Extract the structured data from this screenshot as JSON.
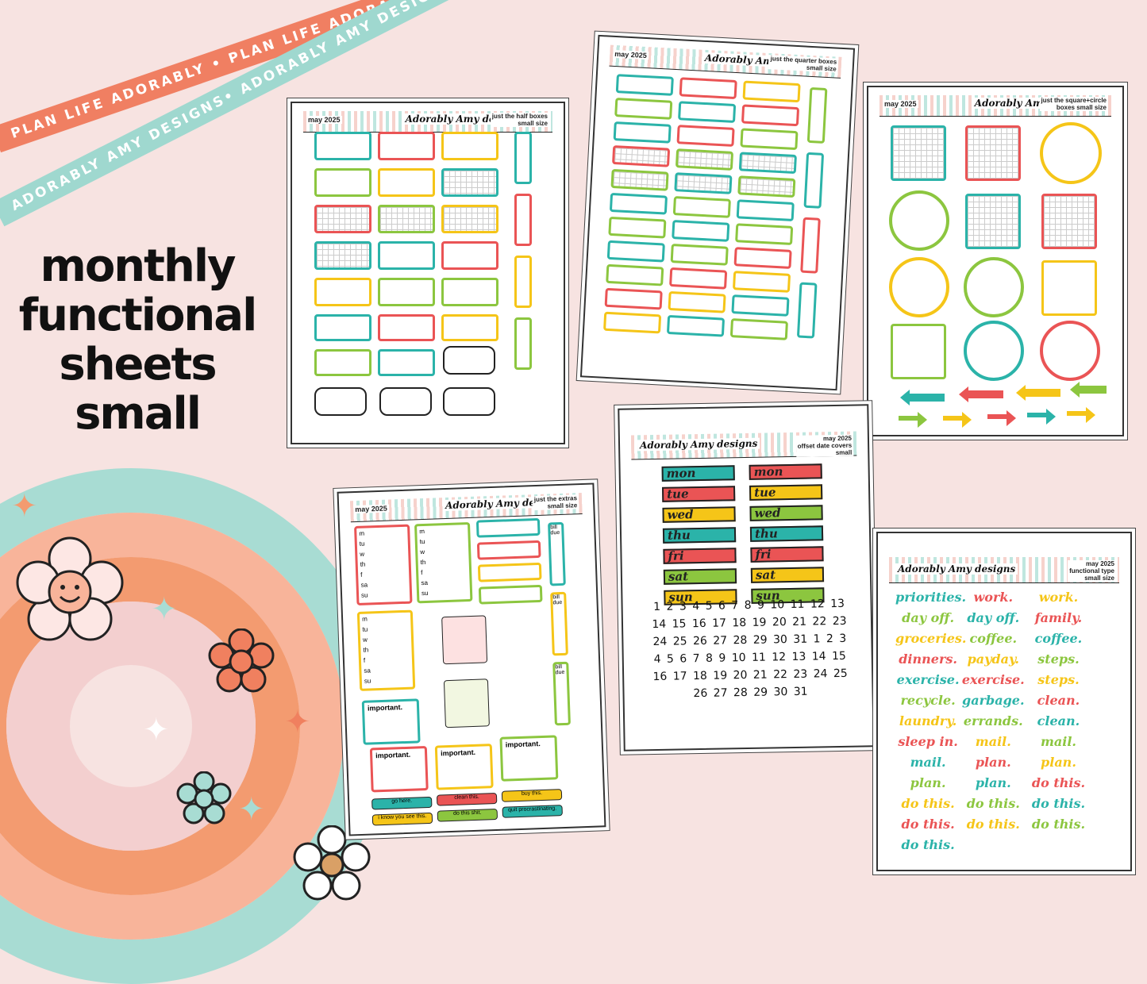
{
  "ribbons": {
    "top": "PLAN LIFE ADORABLY • PLAN LIFE ADORABLY •",
    "bottom": "ADORABLY AMY DESIGNS• ADORABLY AMY DESIGNS• ADORABLY AMY DESIGNS•"
  },
  "headline": {
    "line1": "monthly",
    "line2": "functional",
    "line3": "sheets",
    "line4": "small"
  },
  "brand": "Adorably Amy designs",
  "sheets": {
    "half_boxes": {
      "month": "may 2025",
      "desc1": "just the half boxes",
      "desc2": "small size"
    },
    "quarter_boxes": {
      "month": "may 2025",
      "desc1": "just the quarter boxes",
      "desc2": "small size"
    },
    "square_circle": {
      "month": "may 2025",
      "desc1": "just the square+circle",
      "desc2": "boxes small size"
    },
    "extras": {
      "month": "may 2025",
      "desc1": "just the extras",
      "desc2": "small size",
      "important": "important.",
      "tracker_days": [
        "m",
        "tu",
        "w",
        "th",
        "f",
        "sa",
        "su"
      ],
      "bill_due": "bill due",
      "labels": [
        "go here.",
        "clean this.",
        "buy this.",
        "i know you see this.",
        "do this shit.",
        "quit procrastinating."
      ]
    },
    "date_covers": {
      "month": "may 2025",
      "desc1": "offset date covers",
      "desc2": "small",
      "days": [
        "mon",
        "tue",
        "wed",
        "thu",
        "fri",
        "sat",
        "sun"
      ],
      "dates": "1 2 3 4 5 6 7 8 9 10 11 12 13 14 15 16 17 18 19 20 21 22 23 24 25 26 27 28 29 30 31 1 2 3 4 5 6 7 8 9 10 11 12 13 14 15 16 17 18 19 20 21 22 23 24 25 26 27 28 29 30 31"
    },
    "functional_type": {
      "month": "may 2025",
      "desc1": "functional type",
      "desc2": "small size",
      "words": [
        "priorities.",
        "work.",
        "work.",
        "day off.",
        "day off.",
        "family.",
        "groceries.",
        "coffee.",
        "coffee.",
        "dinners.",
        "payday.",
        "steps.",
        "exercise.",
        "exercise.",
        "steps.",
        "recycle.",
        "garbage.",
        "clean.",
        "laundry.",
        "errands.",
        "clean.",
        "sleep in.",
        "mail.",
        "mail.",
        "mail.",
        "plan.",
        "plan.",
        "plan.",
        "plan.",
        "do this.",
        "do this.",
        "do this.",
        "do this.",
        "do this.",
        "do this.",
        "do this.",
        "do this."
      ]
    }
  },
  "colors": {
    "teal": "#2bb3a9",
    "red": "#ea5455",
    "yellow": "#f5c518",
    "green": "#8cc63f",
    "background": "#f7e3e1"
  }
}
